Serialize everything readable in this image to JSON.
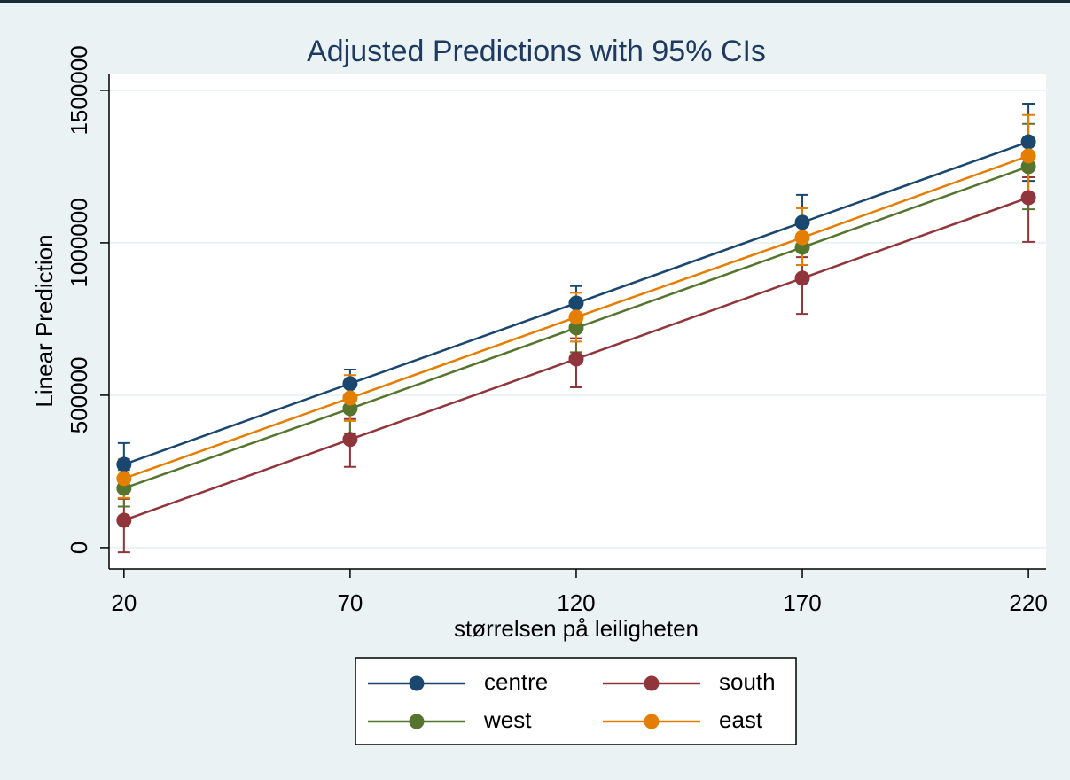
{
  "chart_data": {
    "type": "line",
    "title": "Adjusted Predictions with 95% CIs",
    "x_label": "størrelsen på leiligheten",
    "y_label": "Linear Prediction",
    "x": [
      20,
      70,
      120,
      170,
      220
    ],
    "xlim": [
      16.7,
      223.9
    ],
    "xticks": [
      20,
      70,
      120,
      170,
      220
    ],
    "ylim": [
      -70000,
      1555000
    ],
    "yticks": [
      0,
      500000,
      1000000,
      1500000
    ],
    "grid": true,
    "series": [
      {
        "name": "centre",
        "color": "#1a476f",
        "values": [
          273000,
          538000,
          802000,
          1067000,
          1331000
        ],
        "lower": [
          203000,
          492000,
          746000,
          977000,
          1203000
        ],
        "upper": [
          343000,
          584000,
          858000,
          1157000,
          1456000
        ]
      },
      {
        "name": "south",
        "color": "#90353b",
        "values": [
          90000,
          355000,
          619000,
          884000,
          1148000
        ],
        "lower": [
          -15000,
          265000,
          526000,
          767000,
          1003000
        ],
        "upper": [
          160000,
          422000,
          687000,
          953000,
          1215000
        ]
      },
      {
        "name": "west",
        "color": "#55752f",
        "values": [
          195000,
          456000,
          721000,
          985000,
          1250000
        ],
        "lower": [
          135000,
          375000,
          641000,
          927000,
          1110000
        ],
        "upper": [
          255000,
          536000,
          801000,
          1055000,
          1390000
        ]
      },
      {
        "name": "east",
        "color": "#e37e00",
        "values": [
          227000,
          491000,
          756000,
          1017000,
          1285000
        ],
        "lower": [
          163000,
          416000,
          676000,
          927000,
          1155000
        ],
        "upper": [
          291000,
          566000,
          836000,
          1113000,
          1419000
        ]
      }
    ]
  }
}
